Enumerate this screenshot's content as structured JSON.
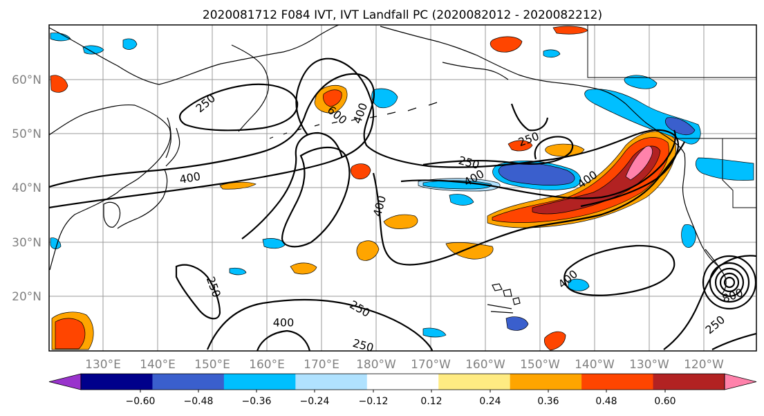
{
  "figure": {
    "title": "2020081712 F084 IVT, IVT Landfall PC (2020082012 - 2020082212)"
  },
  "map": {
    "latitude_labels": [
      "60°N",
      "50°N",
      "40°N",
      "30°N",
      "20°N"
    ],
    "longitude_labels": [
      "130°E",
      "140°E",
      "150°E",
      "160°E",
      "170°E",
      "180°W",
      "170°W",
      "160°W",
      "150°W",
      "140°W",
      "130°W",
      "120°W"
    ],
    "contour_labels": [
      "250",
      "600",
      "400",
      "250",
      "400",
      "250",
      "400",
      "400",
      "400",
      "250",
      "250",
      "400",
      "250",
      "250",
      "400",
      "800"
    ],
    "contour_levels": [
      250,
      400,
      600,
      800
    ]
  },
  "colorbar": {
    "colors": [
      "#9933cc",
      "#00008b",
      "#3a5fcd",
      "#00bfff",
      "#b0e2ff",
      "#ffffff",
      "#ffeb82",
      "#ffa500",
      "#ff4500",
      "#b22222",
      "#ff82ab"
    ],
    "tick_labels": [
      "−0.60",
      "−0.48",
      "−0.36",
      "−0.24",
      "−0.12",
      "0.12",
      "0.24",
      "0.36",
      "0.48",
      "0.60"
    ],
    "extend": "both"
  }
}
